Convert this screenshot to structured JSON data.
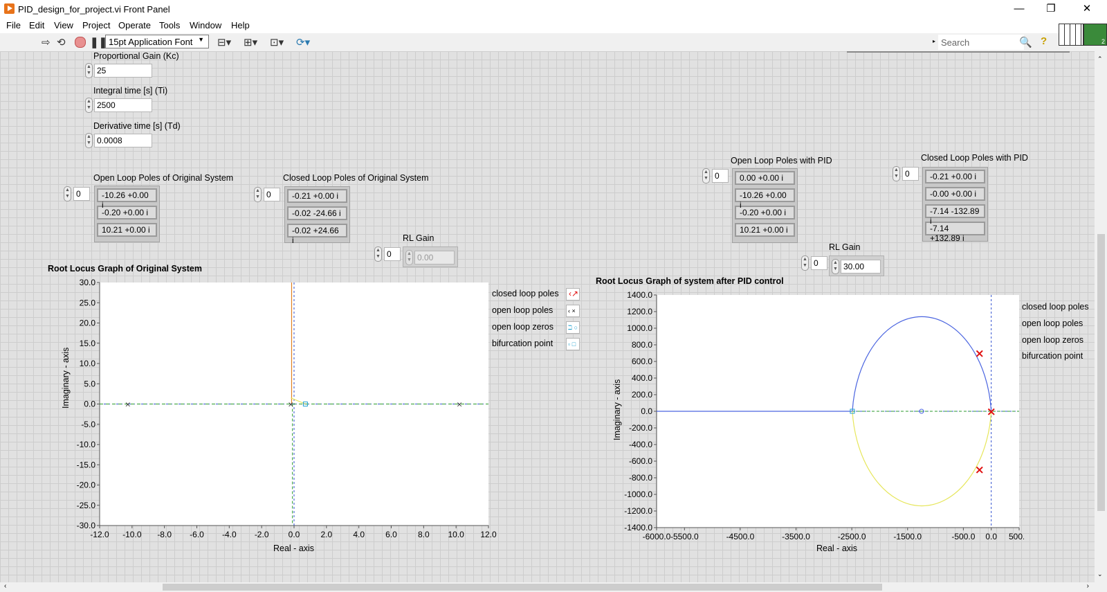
{
  "window": {
    "title": "PID_design_for_project.vi Front Panel",
    "minimize": "—",
    "restore": "❐",
    "close": "✕"
  },
  "menu": [
    "File",
    "Edit",
    "View",
    "Project",
    "Operate",
    "Tools",
    "Window",
    "Help"
  ],
  "toolbar": {
    "font": "15pt Application Font",
    "search_placeholder": "Search",
    "connector_badge": "2",
    "icons": [
      "run-arrow-icon",
      "run-continuous-icon",
      "abort-icon",
      "pause-icon",
      "align-icon",
      "distribute-icon",
      "resize-icon",
      "reorder-icon",
      "search-icon",
      "help-icon"
    ]
  },
  "controls": {
    "kc": {
      "label": "Proportional Gain (Kc)",
      "value": "25"
    },
    "ti": {
      "label": "Integral time [s] (Ti)",
      "value": "2500"
    },
    "td": {
      "label": "Derivative time [s] (Td)",
      "value": "0.0008"
    }
  },
  "arrays": {
    "ol_orig": {
      "label": "Open Loop Poles of Original System",
      "index": "0",
      "values": [
        "-10.26 +0.00 i",
        "-0.20 +0.00 i",
        "10.21 +0.00 i"
      ]
    },
    "cl_orig": {
      "label": "Closed Loop Poles of Original System",
      "index": "0",
      "values": [
        "-0.21 +0.00 i",
        "-0.02 -24.66 i",
        "-0.02 +24.66 i"
      ]
    },
    "ol_pid": {
      "label": "Open Loop Poles with PID",
      "index": "0",
      "values": [
        "0.00 +0.00 i",
        "-10.26 +0.00 i",
        "-0.20 +0.00 i",
        "10.21 +0.00 i"
      ]
    },
    "cl_pid": {
      "label": "Closed Loop Poles with PID",
      "index": "0",
      "values": [
        "-0.21 +0.00 i",
        "-0.00 +0.00 i",
        "-7.14 -132.89 i",
        "-7.14 +132.89 i"
      ]
    }
  },
  "rl_gain_orig": {
    "label": "RL Gain",
    "index": "0",
    "value": "0.00"
  },
  "rl_gain_pid": {
    "label": "RL Gain",
    "index": "0",
    "value": "30.00"
  },
  "legend": [
    "closed loop poles",
    "open loop poles",
    "open loop zeros",
    "bifurcation point"
  ],
  "colors": {
    "locus_blue": "#4a64e0",
    "locus_orange": "#e08020",
    "locus_green": "#2a9a2a",
    "locus_yellow": "#e6e65a",
    "pole_red": "#e01010",
    "marker_cyan": "#20a0d0",
    "axis_blue": "#3050d0"
  },
  "chart_data": [
    {
      "type": "scatter",
      "title": "Root Locus Graph of Original System",
      "xlabel": "Real - axis",
      "ylabel": "Imaginary - axis",
      "xlim": [
        -12,
        12
      ],
      "ylim": [
        -30,
        30
      ],
      "xticks": [
        "-12.0",
        "-10.0",
        "-8.0",
        "-6.0",
        "-4.0",
        "-2.0",
        "0.0",
        "2.0",
        "4.0",
        "6.0",
        "8.0",
        "10.0",
        "12.0"
      ],
      "yticks": [
        "30.0",
        "25.0",
        "20.0",
        "15.0",
        "10.0",
        "5.0",
        "0.0",
        "-5.0",
        "-10.0",
        "-15.0",
        "-20.0",
        "-25.0",
        "-30.0"
      ],
      "open_loop_poles": [
        [
          -10.26,
          0
        ],
        [
          -0.2,
          0
        ],
        [
          10.21,
          0
        ]
      ],
      "bifurcation_point": [
        0.7,
        0
      ],
      "grid": false,
      "legend_position": "right"
    },
    {
      "type": "scatter",
      "title": "Root Locus Graph of system after PID control",
      "xlabel": "Real - axis",
      "ylabel": "Imaginary - axis",
      "xlim": [
        -6000,
        500
      ],
      "ylim": [
        -1400,
        1400
      ],
      "xticks": [
        "-6000.0",
        "-5500.0",
        "-4500.0",
        "-3500.0",
        "-2500.0",
        "-1500.0",
        "-500.0",
        "0.0",
        "500.0"
      ],
      "yticks": [
        "1400.0",
        "1200.0",
        "1000.0",
        "800.0",
        "600.0",
        "400.0",
        "200.0",
        "0.0",
        "-200.0",
        "-400.0",
        "-600.0",
        "-800.0",
        "-1000.0",
        "-1200.0",
        "-1400.0"
      ],
      "closed_loop_poles": [
        [
          -210,
          700
        ],
        [
          -210,
          -700
        ],
        [
          0,
          0
        ]
      ],
      "open_loop_zero": [
        -1250,
        0
      ],
      "bifurcation_point": [
        -2490,
        0
      ],
      "grid": false,
      "legend_position": "right"
    }
  ]
}
